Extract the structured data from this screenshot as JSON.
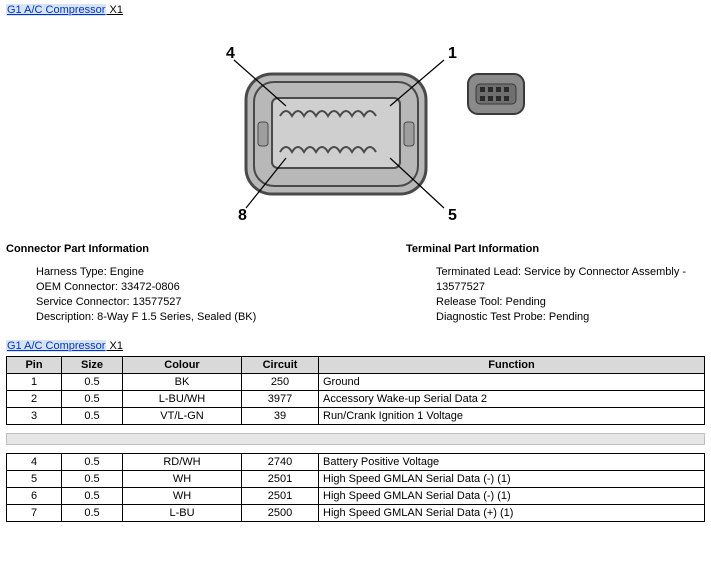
{
  "title": {
    "link": "G1 A/C Compressor",
    "suffix": " X1"
  },
  "diagram": {
    "pin_labels": [
      "4",
      "1",
      "8",
      "5"
    ],
    "connector_fill": "#b8b8b8",
    "connector_stroke": "#4a4a4a",
    "side_fill": "#8a8a8a"
  },
  "connector_info": {
    "heading": "Connector Part Information",
    "items": [
      "Harness Type: Engine",
      "OEM Connector: 33472-0806",
      "Service Connector: 13577527",
      "Description: 8-Way F 1.5 Series, Sealed (BK)"
    ]
  },
  "terminal_info": {
    "heading": "Terminal Part Information",
    "items": [
      "Terminated Lead: Service by Connector Assembly - 13577527",
      "Release Tool: Pending",
      "Diagnostic Test Probe: Pending"
    ]
  },
  "title2": {
    "link": "G1 A/C Compressor",
    "suffix": " X1"
  },
  "pin_table": {
    "headers": [
      "Pin",
      "Size",
      "Colour",
      "Circuit",
      "Function"
    ],
    "rows_a": [
      [
        "1",
        "0.5",
        "BK",
        "250",
        "Ground"
      ],
      [
        "2",
        "0.5",
        "L-BU/WH",
        "3977",
        "Accessory Wake-up Serial Data 2"
      ],
      [
        "3",
        "0.5",
        "VT/L-GN",
        "39",
        "Run/Crank Ignition 1 Voltage"
      ]
    ],
    "rows_b": [
      [
        "4",
        "0.5",
        "RD/WH",
        "2740",
        "Battery Positive Voltage"
      ],
      [
        "5",
        "0.5",
        "WH",
        "2501",
        "High Speed GMLAN Serial Data (-) (1)"
      ],
      [
        "6",
        "0.5",
        "WH",
        "2501",
        "High Speed GMLAN Serial Data (-) (1)"
      ],
      [
        "7",
        "0.5",
        "L-BU",
        "2500",
        "High Speed GMLAN Serial Data (+) (1)"
      ]
    ]
  }
}
